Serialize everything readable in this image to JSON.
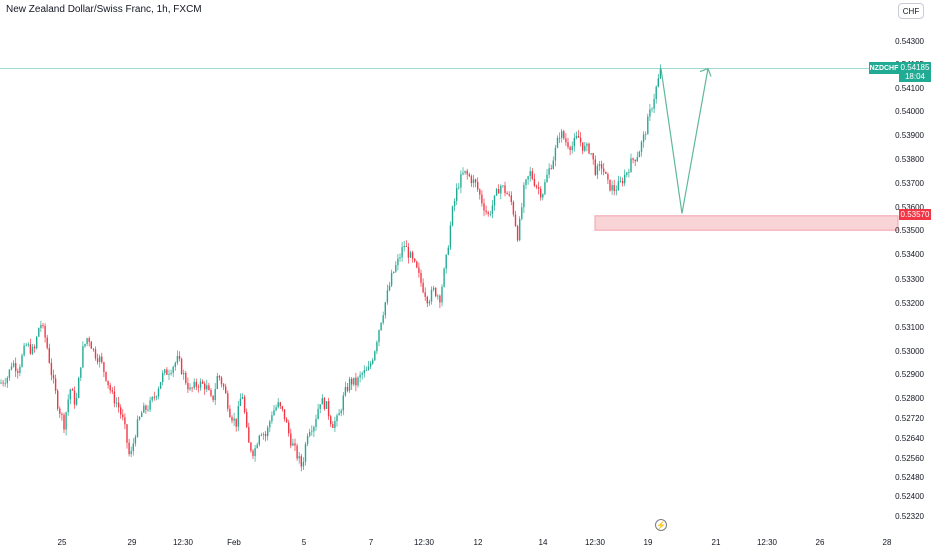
{
  "header": {
    "title": "New Zealand Dollar/Swiss Franc, 1h, FXCM",
    "currency": "CHF"
  },
  "price_panel": {
    "ticker": "NZDCHF",
    "last_price": "0.54185",
    "countdown": "18:04",
    "zone_price": "0.53570"
  },
  "icons": {
    "lightning": "lightning-icon"
  },
  "colors": {
    "up": "#22ab94",
    "down": "#f23645",
    "zone_fill": "#f7c6ca",
    "projection": "#5fb89a"
  },
  "chart_data": {
    "type": "candlestick",
    "title": "New Zealand Dollar/Swiss Franc, 1h, FXCM",
    "y_ticks": [
      "0.54300",
      "0.54185",
      "0.54100",
      "0.54000",
      "0.53900",
      "0.53800",
      "0.53700",
      "0.53600",
      "0.53500",
      "0.53400",
      "0.53300",
      "0.53200",
      "0.53100",
      "0.53000",
      "0.52900",
      "0.52800",
      "0.52720",
      "0.52640",
      "0.52560",
      "0.52480",
      "0.52400",
      "0.52320"
    ],
    "x_ticks": [
      "25",
      "29",
      "12:30",
      "Feb",
      "5",
      "7",
      "12:30",
      "12",
      "14",
      "12:30",
      "19",
      "21",
      "12:30",
      "26",
      "28"
    ],
    "price_path": [
      [
        0,
        0.5287
      ],
      [
        8,
        0.529
      ],
      [
        12,
        0.5296
      ],
      [
        18,
        0.5293
      ],
      [
        26,
        0.5303
      ],
      [
        34,
        0.53
      ],
      [
        40,
        0.5313
      ],
      [
        46,
        0.5305
      ],
      [
        52,
        0.529
      ],
      [
        58,
        0.5278
      ],
      [
        64,
        0.527
      ],
      [
        70,
        0.5285
      ],
      [
        76,
        0.5278
      ],
      [
        82,
        0.53
      ],
      [
        88,
        0.5307
      ],
      [
        94,
        0.53
      ],
      [
        100,
        0.5297
      ],
      [
        106,
        0.529
      ],
      [
        112,
        0.5282
      ],
      [
        118,
        0.5278
      ],
      [
        124,
        0.527
      ],
      [
        130,
        0.5255
      ],
      [
        136,
        0.5268
      ],
      [
        142,
        0.5275
      ],
      [
        150,
        0.5278
      ],
      [
        156,
        0.5283
      ],
      [
        162,
        0.529
      ],
      [
        170,
        0.5293
      ],
      [
        178,
        0.5297
      ],
      [
        184,
        0.529
      ],
      [
        190,
        0.5284
      ],
      [
        198,
        0.5287
      ],
      [
        206,
        0.5286
      ],
      [
        212,
        0.5279
      ],
      [
        218,
        0.5291
      ],
      [
        224,
        0.5285
      ],
      [
        230,
        0.5275
      ],
      [
        236,
        0.527
      ],
      [
        242,
        0.5284
      ],
      [
        248,
        0.5262
      ],
      [
        254,
        0.5258
      ],
      [
        260,
        0.5268
      ],
      [
        266,
        0.5265
      ],
      [
        272,
        0.5275
      ],
      [
        278,
        0.5278
      ],
      [
        284,
        0.5274
      ],
      [
        290,
        0.5264
      ],
      [
        296,
        0.5258
      ],
      [
        302,
        0.5252
      ],
      [
        308,
        0.5268
      ],
      [
        314,
        0.527
      ],
      [
        320,
        0.528
      ],
      [
        326,
        0.5278
      ],
      [
        332,
        0.527
      ],
      [
        338,
        0.5272
      ],
      [
        344,
        0.5282
      ],
      [
        350,
        0.5288
      ],
      [
        356,
        0.5287
      ],
      [
        362,
        0.5291
      ],
      [
        368,
        0.5292
      ],
      [
        374,
        0.53
      ],
      [
        380,
        0.5312
      ],
      [
        386,
        0.5322
      ],
      [
        392,
        0.5332
      ],
      [
        398,
        0.5338
      ],
      [
        404,
        0.5345
      ],
      [
        410,
        0.534
      ],
      [
        416,
        0.5335
      ],
      [
        422,
        0.5328
      ],
      [
        428,
        0.5322
      ],
      [
        434,
        0.5326
      ],
      [
        440,
        0.5323
      ],
      [
        446,
        0.5338
      ],
      [
        452,
        0.5358
      ],
      [
        458,
        0.537
      ],
      [
        464,
        0.5375
      ],
      [
        470,
        0.5373
      ],
      [
        476,
        0.537
      ],
      [
        482,
        0.5363
      ],
      [
        488,
        0.5357
      ],
      [
        494,
        0.5363
      ],
      [
        500,
        0.537
      ],
      [
        506,
        0.5367
      ],
      [
        512,
        0.5362
      ],
      [
        518,
        0.5348
      ],
      [
        524,
        0.5368
      ],
      [
        530,
        0.5375
      ],
      [
        536,
        0.537
      ],
      [
        542,
        0.5366
      ],
      [
        548,
        0.5375
      ],
      [
        554,
        0.5382
      ],
      [
        560,
        0.5392
      ],
      [
        566,
        0.5388
      ],
      [
        572,
        0.5386
      ],
      [
        578,
        0.539
      ],
      [
        584,
        0.5385
      ],
      [
        590,
        0.5385
      ],
      [
        596,
        0.5375
      ],
      [
        602,
        0.5378
      ],
      [
        608,
        0.537
      ],
      [
        614,
        0.5368
      ],
      [
        620,
        0.537
      ],
      [
        626,
        0.5375
      ],
      [
        632,
        0.538
      ],
      [
        638,
        0.5383
      ],
      [
        644,
        0.539
      ],
      [
        650,
        0.54
      ],
      [
        656,
        0.541
      ],
      [
        661,
        0.5418
      ]
    ],
    "current_price": 0.54185,
    "support_zone": {
      "top": 0.5357,
      "bottom": 0.5351
    },
    "projection": [
      0.54185,
      0.5358,
      0.54185
    ]
  }
}
